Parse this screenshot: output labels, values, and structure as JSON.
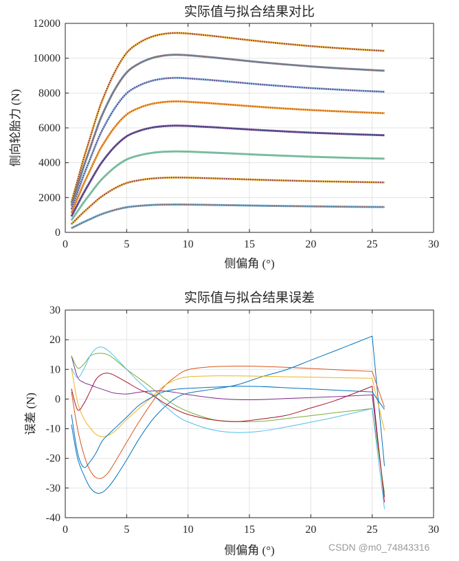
{
  "watermark": "CSDN @m0_74843316",
  "chart_data": [
    {
      "type": "line",
      "title": "实际值与拟合结果对比",
      "xlabel": "侧偏角 (°)",
      "ylabel": "侧向轮胎力 (N)",
      "xlim": [
        0,
        30
      ],
      "ylim": [
        0,
        12000
      ],
      "xticks": [
        0,
        5,
        10,
        15,
        20,
        25,
        30
      ],
      "yticks": [
        0,
        2000,
        4000,
        6000,
        8000,
        10000,
        12000
      ],
      "grid": true,
      "legend": "none",
      "style": "solid actual line overlaid with dotted fitted line",
      "x": [
        0.5,
        1,
        1.5,
        2,
        2.5,
        3,
        4,
        5,
        6,
        7,
        8,
        9,
        10,
        12,
        14,
        16,
        18,
        20,
        22,
        24,
        26
      ],
      "series": [
        {
          "color": "#EDB120",
          "dot_color": "#8B2E4A",
          "values": [
            1718,
            2977,
            4237,
            5382,
            6527,
            7557,
            9160,
            10305,
            10878,
            11221,
            11393,
            11450,
            11416,
            11278,
            11118,
            10958,
            10820,
            10694,
            10591,
            10500,
            10420
          ]
        },
        {
          "color": "#5E7896",
          "dot_color": "#8A6460",
          "values": [
            1530,
            2652,
            3774,
            4794,
            5814,
            6732,
            8160,
            9180,
            9690,
            9996,
            10149,
            10200,
            10169,
            10047,
            9904,
            9761,
            9639,
            9527,
            9435,
            9353,
            9282
          ]
        },
        {
          "color": "#7FB3E0",
          "dot_color": "#5A3A7A",
          "values": [
            1331,
            2306,
            3282,
            4169,
            5056,
            5854,
            7096,
            7983,
            8427,
            8693,
            8826,
            8870,
            8843,
            8737,
            8613,
            8489,
            8382,
            8285,
            8205,
            8134,
            8072
          ]
        },
        {
          "color": "#F5A030",
          "dot_color": "#C45A10",
          "values": [
            1128,
            1955,
            2782,
            3534,
            4286,
            4963,
            6016,
            6768,
            7144,
            7370,
            7482,
            7520,
            7497,
            7407,
            7302,
            7197,
            7106,
            7024,
            6956,
            6896,
            6843
          ]
        },
        {
          "color": "#6A3A8A",
          "dot_color": "#2E3E78",
          "values": [
            920,
            1594,
            2268,
            2881,
            3494,
            4046,
            4904,
            5517,
            5824,
            6007,
            6099,
            6130,
            6112,
            6038,
            5952,
            5866,
            5793,
            5725,
            5670,
            5621,
            5578
          ]
        },
        {
          "color": "#63B88A",
          "dot_color": "#7AB0A8",
          "values": [
            698,
            1209,
            1721,
            2186,
            2651,
            3069,
            3720,
            4185,
            4418,
            4557,
            4627,
            4650,
            4636,
            4580,
            4515,
            4450,
            4394,
            4343,
            4301,
            4264,
            4232
          ]
        },
        {
          "color": "#EDB120",
          "dot_color": "#7E2F5E",
          "values": [
            473,
            819,
            1166,
            1481,
            1796,
            2079,
            2520,
            2835,
            2993,
            3087,
            3134,
            3150,
            3141,
            3103,
            3059,
            3015,
            2977,
            2942,
            2914,
            2889,
            2867
          ]
        },
        {
          "color": "#4D9ED0",
          "dot_color": "#9A6050",
          "values": [
            240,
            416,
            592,
            752,
            912,
            1056,
            1280,
            1440,
            1520,
            1568,
            1592,
            1600,
            1595,
            1576,
            1554,
            1531,
            1512,
            1494,
            1480,
            1467,
            1456
          ]
        }
      ]
    },
    {
      "type": "line",
      "title": "实际值与拟合结果误差",
      "xlabel": "侧偏角 (°)",
      "ylabel": "误差 (N)",
      "xlim": [
        0,
        30
      ],
      "ylim": [
        -40,
        30
      ],
      "xticks": [
        0,
        5,
        10,
        15,
        20,
        25,
        30
      ],
      "yticks": [
        -40,
        -30,
        -20,
        -10,
        0,
        10,
        20,
        30
      ],
      "grid": true,
      "legend": "none",
      "x": [
        0.5,
        1,
        1.5,
        2,
        2.5,
        3,
        3.5,
        4,
        5,
        6,
        7,
        8,
        9,
        10,
        12,
        14,
        16,
        18,
        20,
        22,
        25,
        26
      ],
      "series": [
        {
          "color": "#0072BD",
          "values": [
            -8.6,
            -19.9,
            -25.5,
            -29.7,
            -31.6,
            -31.5,
            -29.7,
            -27,
            -20.5,
            -13.5,
            -7.5,
            -3,
            0.3,
            2,
            3.3,
            4.8,
            7.5,
            9.9,
            13.1,
            16.3,
            21.2,
            -22.6
          ]
        },
        {
          "color": "#D95319",
          "values": [
            2.4,
            -10,
            -18.5,
            -23.9,
            -26.5,
            -26.6,
            -24.8,
            -21.6,
            -14.6,
            -7.7,
            -1.5,
            4,
            7.6,
            9.9,
            10.9,
            11.1,
            11,
            10.7,
            10.3,
            9.9,
            9.3,
            -2.8
          ]
        },
        {
          "color": "#EDB120",
          "values": [
            10.5,
            -1,
            -6.5,
            -9.6,
            -11.9,
            -12.7,
            -12.2,
            -11,
            -6.9,
            -3.2,
            0.5,
            4.3,
            6.5,
            7.5,
            7.8,
            7.8,
            7.7,
            7.5,
            7.4,
            7.2,
            7.0,
            -10.6
          ]
        },
        {
          "color": "#7E2F8E",
          "values": [
            14.6,
            7.4,
            5.6,
            4.8,
            4.0,
            3.3,
            2.6,
            2.0,
            1.7,
            2.3,
            2.7,
            2.7,
            2.2,
            1.5,
            0.4,
            -0.2,
            -0.2,
            0.2,
            0.5,
            0.8,
            1.4,
            -33
          ]
        },
        {
          "color": "#77AC30",
          "values": [
            14.6,
            10.5,
            11.7,
            14.4,
            15.3,
            15.4,
            14.9,
            13.5,
            10,
            7,
            3.9,
            0.5,
            -2.2,
            -4.2,
            -6.9,
            -7.6,
            -7.5,
            -6.6,
            -5.6,
            -4.6,
            -3.2,
            -31.6
          ]
        },
        {
          "color": "#4DBEEE",
          "values": [
            10.5,
            7.2,
            10,
            14.4,
            17,
            17.5,
            16.3,
            14.4,
            10,
            5.8,
            2,
            -1.9,
            -5.4,
            -7.7,
            -10.4,
            -11.3,
            -10.8,
            -9.4,
            -7.8,
            -6.1,
            -3.2,
            -37.1
          ]
        },
        {
          "color": "#A2142F",
          "values": [
            3.5,
            -3.6,
            -1.6,
            2.4,
            6.6,
            8.4,
            8.7,
            8,
            5.7,
            3.3,
            1.5,
            -1.2,
            -3.5,
            -5.2,
            -7,
            -7.6,
            -6.7,
            -5.5,
            -3,
            -0.5,
            4.3,
            -34.8
          ]
        },
        {
          "color": "#0072BD",
          "values": [
            -5.2,
            -18,
            -23,
            -21.2,
            -18.2,
            -14.2,
            -12,
            -10,
            -6.1,
            -2.1,
            0.5,
            2.4,
            3.3,
            3.6,
            4,
            4.3,
            4.2,
            3.8,
            3.4,
            3.0,
            2.4,
            -3.5
          ]
        }
      ]
    }
  ]
}
